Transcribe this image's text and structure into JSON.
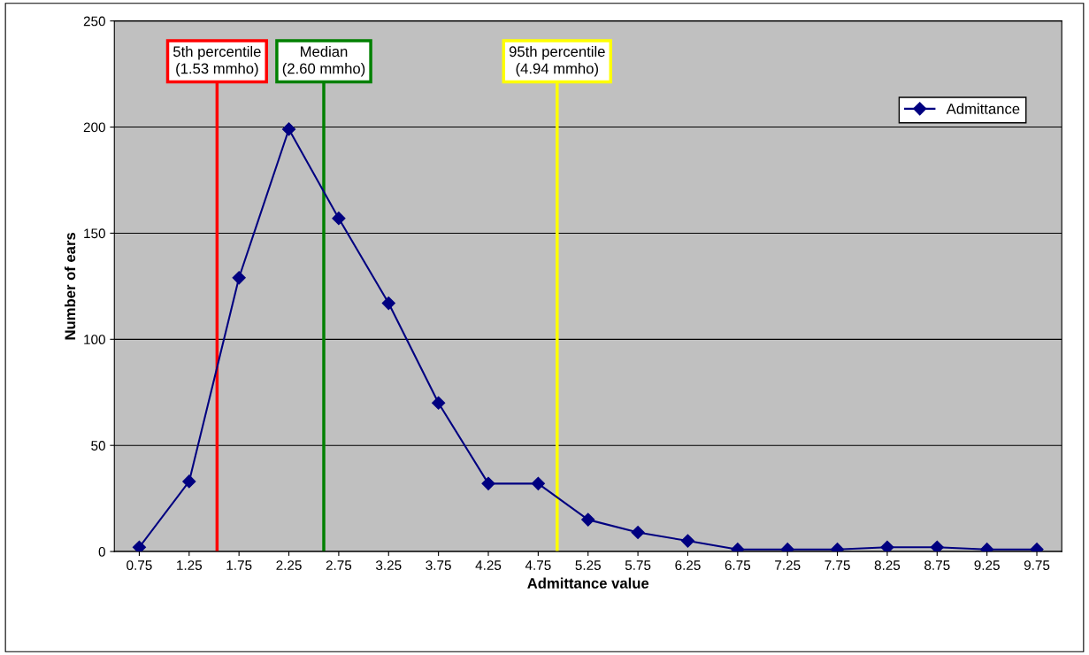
{
  "chart_data": {
    "type": "line",
    "xlabel": "Admittance value",
    "ylabel": "Number of ears",
    "x": [
      0.75,
      1.25,
      1.75,
      2.25,
      2.75,
      3.25,
      3.75,
      4.25,
      4.75,
      5.25,
      5.75,
      6.25,
      6.75,
      7.25,
      7.75,
      8.25,
      8.75,
      9.25,
      9.75
    ],
    "series": [
      {
        "name": "Admittance",
        "color": "#000080",
        "values": [
          2,
          33,
          129,
          199,
          157,
          117,
          70,
          32,
          32,
          15,
          9,
          5,
          1,
          1,
          1,
          2,
          2,
          1,
          1
        ]
      }
    ],
    "xlim": [
      0.5,
      10
    ],
    "xticks": [
      0.75,
      1.25,
      1.75,
      2.25,
      2.75,
      3.25,
      3.75,
      4.25,
      4.75,
      5.25,
      5.75,
      6.25,
      6.75,
      7.25,
      7.75,
      8.25,
      8.75,
      9.25,
      9.75
    ],
    "ylim": [
      0,
      250
    ],
    "yticks": [
      0,
      50,
      100,
      150,
      200,
      250
    ],
    "ref_lines": [
      {
        "axis": "x",
        "value": 1.53,
        "label": "5th percentile\n(1.53 mmho)",
        "color": "#ff0000"
      },
      {
        "axis": "x",
        "value": 2.6,
        "label": "Median\n(2.60 mmho)",
        "color": "#008000"
      },
      {
        "axis": "x",
        "value": 4.94,
        "label": "95th percentile\n(4.94 mmho)",
        "color": "#ffff00"
      }
    ],
    "grid": "y",
    "legend": "top right",
    "marker": "diamond",
    "line_style": "solid"
  }
}
